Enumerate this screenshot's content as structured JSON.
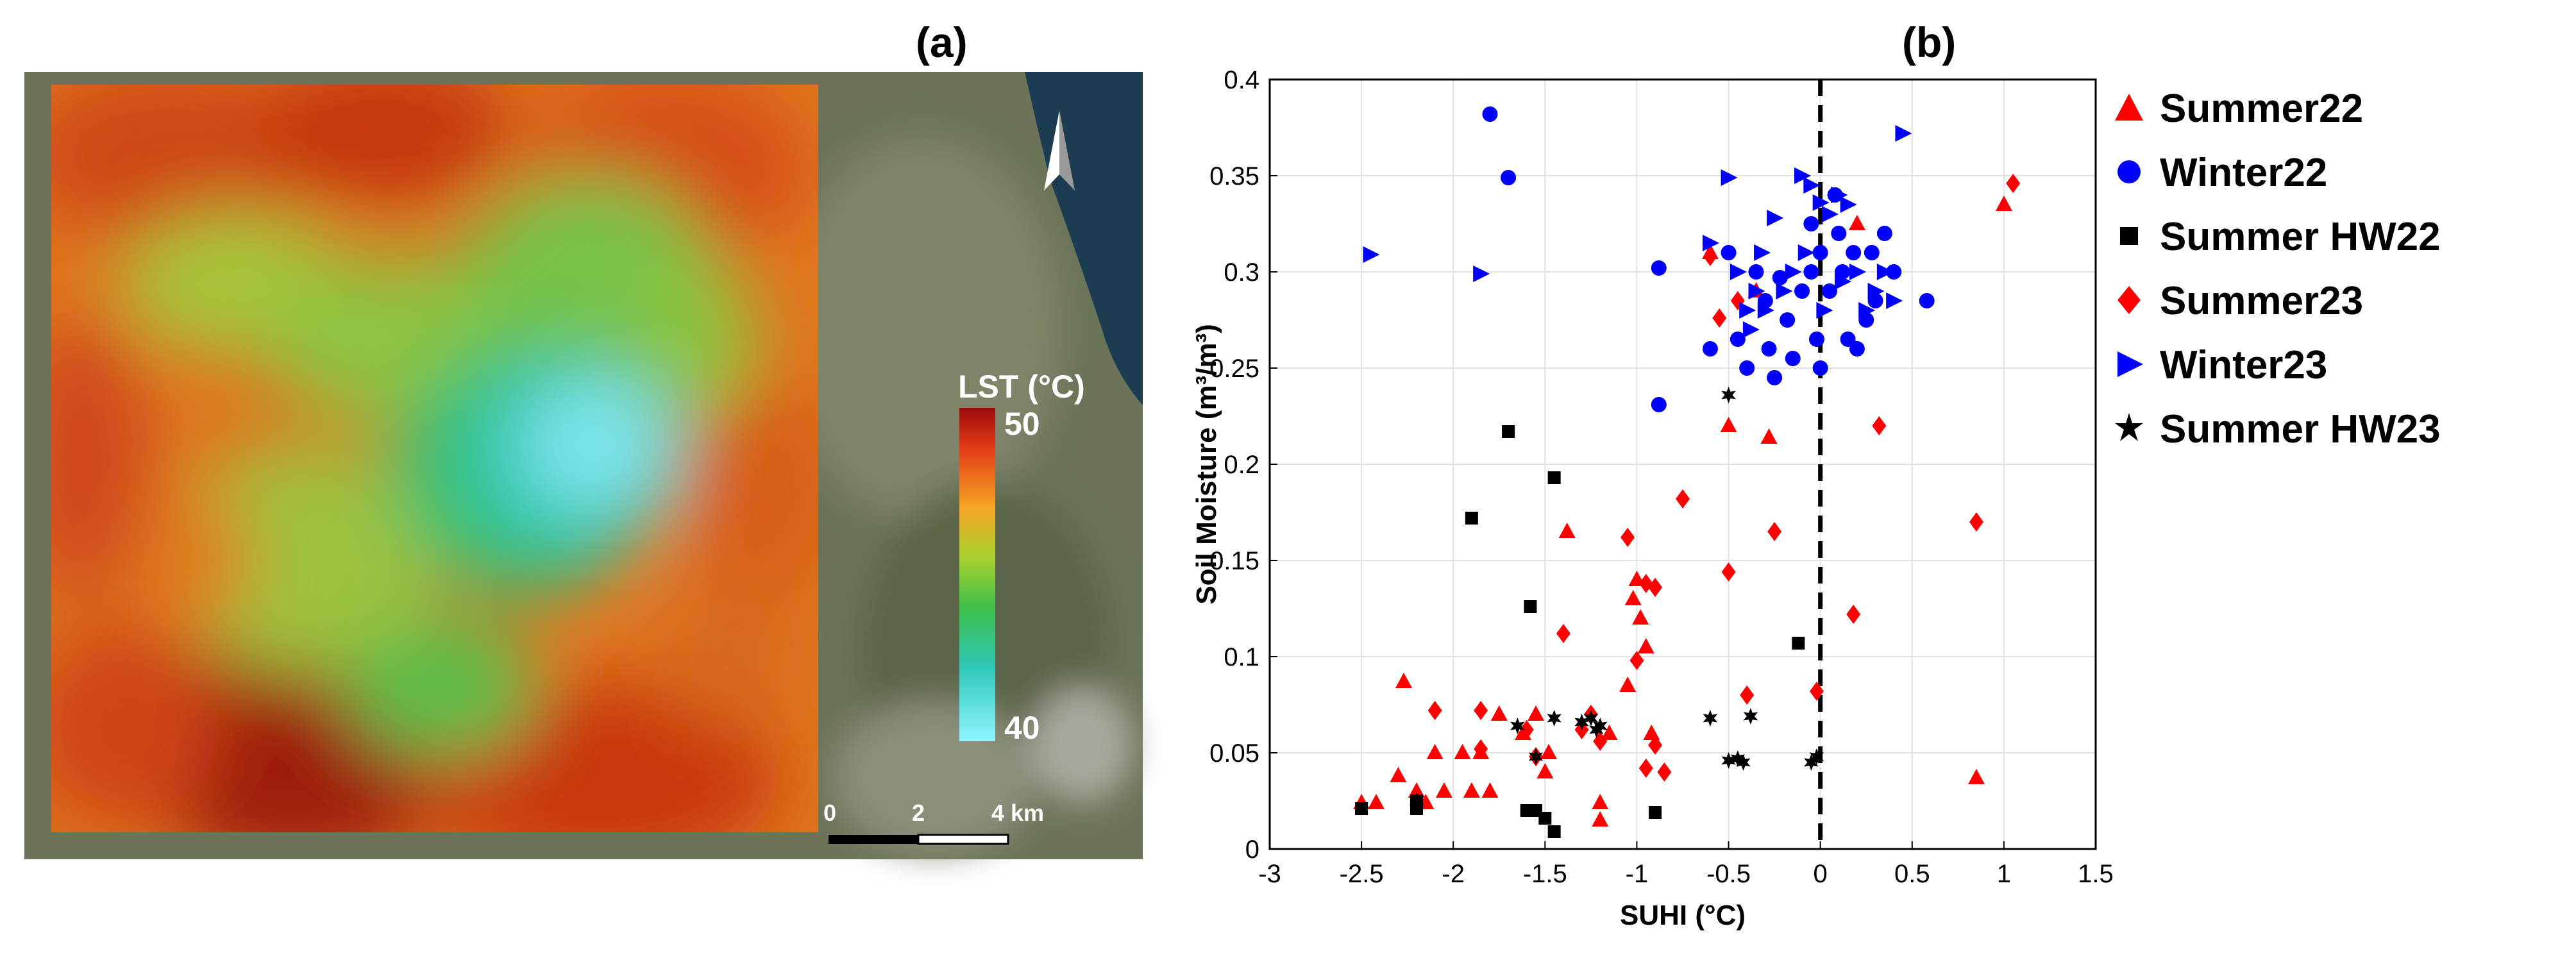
{
  "panels": {
    "a_label": "(a)",
    "b_label": "(b)"
  },
  "map": {
    "colorbar_title": "LST (°C)",
    "colorbar_max": "50",
    "colorbar_min": "40",
    "scale_labels": [
      "0",
      "2",
      "4 km"
    ],
    "colors": {
      "hot": "#c62d10",
      "warm": "#e4781c",
      "mid": "#a9c13a",
      "green": "#3fb14e",
      "cool": "#38c3c8",
      "cold": "#8eeaf0",
      "sea": "#1c3c52",
      "land": "#6b7458"
    }
  },
  "chart_data": {
    "type": "scatter",
    "xlabel": "SUHI (°C)",
    "ylabel": "Soil Moisture (m³/m³)",
    "xlim": [
      -3,
      1.5
    ],
    "ylim": [
      0,
      0.4
    ],
    "xticks": [
      "-3",
      "-2.5",
      "-2",
      "-1.5",
      "-1",
      "-0.5",
      "0",
      "0.5",
      "1",
      "1.5"
    ],
    "yticks": [
      "0",
      "0.05",
      "0.1",
      "0.15",
      "0.2",
      "0.25",
      "0.3",
      "0.35",
      "0.4"
    ],
    "grid": true,
    "legend_position": "right",
    "reference_line": {
      "x": 0,
      "style": "dashed"
    },
    "series": [
      {
        "name": "Summer22",
        "marker": "triangle",
        "color": "#ff0000",
        "points": [
          [
            -2.5,
            0.024
          ],
          [
            -2.42,
            0.024
          ],
          [
            -2.3,
            0.038
          ],
          [
            -2.27,
            0.087
          ],
          [
            -2.2,
            0.03
          ],
          [
            -2.15,
            0.024
          ],
          [
            -2.1,
            0.05
          ],
          [
            -2.05,
            0.03
          ],
          [
            -1.95,
            0.05
          ],
          [
            -1.9,
            0.03
          ],
          [
            -1.85,
            0.05
          ],
          [
            -1.8,
            0.03
          ],
          [
            -1.75,
            0.07
          ],
          [
            -1.62,
            0.06
          ],
          [
            -1.55,
            0.07
          ],
          [
            -1.5,
            0.04
          ],
          [
            -1.48,
            0.05
          ],
          [
            -1.38,
            0.165
          ],
          [
            -1.2,
            0.024
          ],
          [
            -1.2,
            0.015
          ],
          [
            -1.15,
            0.06
          ],
          [
            -1.05,
            0.085
          ],
          [
            -1.02,
            0.13
          ],
          [
            -1.0,
            0.14
          ],
          [
            -0.98,
            0.12
          ],
          [
            -0.95,
            0.105
          ],
          [
            -0.92,
            0.06
          ],
          [
            -0.5,
            0.22
          ],
          [
            -0.28,
            0.214
          ],
          [
            -0.6,
            0.31
          ],
          [
            -0.35,
            0.29
          ],
          [
            0.2,
            0.325
          ],
          [
            0.85,
            0.037
          ],
          [
            1.0,
            0.335
          ]
        ]
      },
      {
        "name": "Winter22",
        "marker": "circle",
        "color": "#0000ff",
        "points": [
          [
            -1.8,
            0.382
          ],
          [
            -1.7,
            0.349
          ],
          [
            -0.88,
            0.302
          ],
          [
            -0.88,
            0.231
          ],
          [
            -0.6,
            0.26
          ],
          [
            -0.5,
            0.31
          ],
          [
            -0.45,
            0.265
          ],
          [
            -0.4,
            0.25
          ],
          [
            -0.35,
            0.3
          ],
          [
            -0.3,
            0.285
          ],
          [
            -0.28,
            0.26
          ],
          [
            -0.25,
            0.245
          ],
          [
            -0.22,
            0.297
          ],
          [
            -0.18,
            0.275
          ],
          [
            -0.15,
            0.255
          ],
          [
            -0.1,
            0.29
          ],
          [
            -0.05,
            0.3
          ],
          [
            -0.02,
            0.265
          ],
          [
            0.0,
            0.25
          ],
          [
            0.0,
            0.31
          ],
          [
            0.05,
            0.29
          ],
          [
            0.1,
            0.32
          ],
          [
            0.12,
            0.3
          ],
          [
            0.15,
            0.265
          ],
          [
            0.18,
            0.31
          ],
          [
            0.2,
            0.26
          ],
          [
            0.25,
            0.275
          ],
          [
            0.28,
            0.31
          ],
          [
            0.3,
            0.285
          ],
          [
            0.35,
            0.32
          ],
          [
            0.4,
            0.3
          ],
          [
            0.58,
            0.285
          ],
          [
            -0.05,
            0.325
          ],
          [
            0.08,
            0.34
          ]
        ]
      },
      {
        "name": "Summer HW22",
        "marker": "square",
        "color": "#000000",
        "points": [
          [
            -2.5,
            0.021
          ],
          [
            -2.2,
            0.021
          ],
          [
            -2.2,
            0.025
          ],
          [
            -1.9,
            0.172
          ],
          [
            -1.7,
            0.217
          ],
          [
            -1.6,
            0.02
          ],
          [
            -1.58,
            0.126
          ],
          [
            -1.55,
            0.02
          ],
          [
            -1.5,
            0.016
          ],
          [
            -1.45,
            0.193
          ],
          [
            -1.45,
            0.009
          ],
          [
            -0.9,
            0.019
          ],
          [
            -0.12,
            0.107
          ]
        ]
      },
      {
        "name": "Summer23",
        "marker": "diamond",
        "color": "#ff0000",
        "points": [
          [
            -2.1,
            0.072
          ],
          [
            -1.85,
            0.072
          ],
          [
            -1.85,
            0.052
          ],
          [
            -1.6,
            0.062
          ],
          [
            -1.55,
            0.048
          ],
          [
            -1.4,
            0.112
          ],
          [
            -1.3,
            0.062
          ],
          [
            -1.25,
            0.07
          ],
          [
            -1.2,
            0.056
          ],
          [
            -1.05,
            0.162
          ],
          [
            -1.0,
            0.098
          ],
          [
            -0.95,
            0.042
          ],
          [
            -0.95,
            0.138
          ],
          [
            -0.9,
            0.054
          ],
          [
            -0.9,
            0.136
          ],
          [
            -0.85,
            0.04
          ],
          [
            -0.75,
            0.182
          ],
          [
            -0.55,
            0.276
          ],
          [
            -0.5,
            0.144
          ],
          [
            -0.45,
            0.285
          ],
          [
            -0.4,
            0.08
          ],
          [
            -0.25,
            0.165
          ],
          [
            -0.02,
            0.082
          ],
          [
            0.18,
            0.122
          ],
          [
            0.32,
            0.22
          ],
          [
            0.85,
            0.17
          ],
          [
            1.05,
            0.346
          ],
          [
            -0.6,
            0.308
          ]
        ]
      },
      {
        "name": "Winter23",
        "marker": "triangle-right",
        "color": "#0000ff",
        "points": [
          [
            -2.45,
            0.309
          ],
          [
            -1.85,
            0.299
          ],
          [
            -0.6,
            0.315
          ],
          [
            -0.5,
            0.349
          ],
          [
            -0.45,
            0.3
          ],
          [
            -0.4,
            0.28
          ],
          [
            -0.38,
            0.27
          ],
          [
            -0.35,
            0.29
          ],
          [
            -0.3,
            0.28
          ],
          [
            -0.25,
            0.328
          ],
          [
            -0.2,
            0.29
          ],
          [
            -0.15,
            0.3
          ],
          [
            -0.1,
            0.35
          ],
          [
            -0.05,
            0.345
          ],
          [
            0.0,
            0.336
          ],
          [
            0.05,
            0.33
          ],
          [
            0.1,
            0.34
          ],
          [
            0.15,
            0.335
          ],
          [
            0.2,
            0.3
          ],
          [
            0.25,
            0.28
          ],
          [
            0.3,
            0.29
          ],
          [
            0.35,
            0.3
          ],
          [
            0.4,
            0.285
          ],
          [
            0.45,
            0.372
          ],
          [
            -0.08,
            0.31
          ],
          [
            0.12,
            0.295
          ],
          [
            -0.32,
            0.31
          ],
          [
            0.02,
            0.28
          ]
        ]
      },
      {
        "name": "Summer HW23",
        "marker": "star",
        "color": "#000000",
        "points": [
          [
            -2.2,
            0.025
          ],
          [
            -1.65,
            0.064
          ],
          [
            -1.55,
            0.048
          ],
          [
            -1.45,
            0.068
          ],
          [
            -1.3,
            0.066
          ],
          [
            -1.25,
            0.068
          ],
          [
            -1.22,
            0.062
          ],
          [
            -1.2,
            0.064
          ],
          [
            -0.6,
            0.068
          ],
          [
            -0.5,
            0.046
          ],
          [
            -0.45,
            0.047
          ],
          [
            -0.42,
            0.045
          ],
          [
            -0.38,
            0.069
          ],
          [
            -0.05,
            0.045
          ],
          [
            -0.02,
            0.048
          ],
          [
            -0.5,
            0.236
          ]
        ]
      }
    ]
  }
}
